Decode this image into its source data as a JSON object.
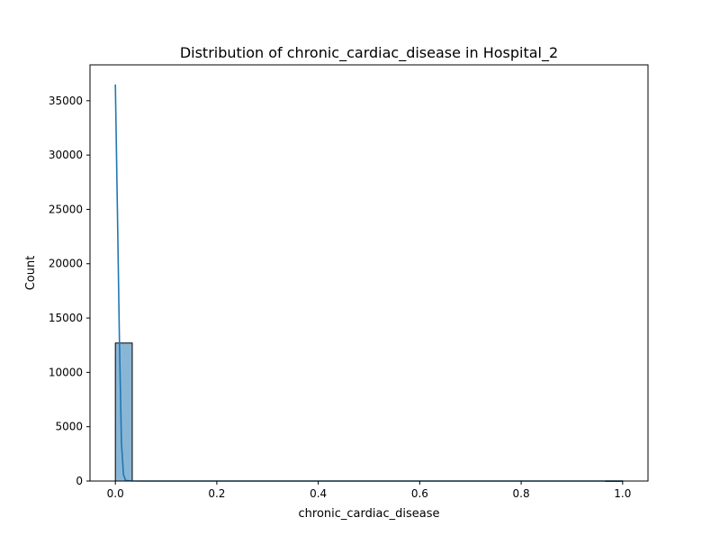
{
  "chart_data": {
    "type": "bar",
    "title": "Distribution of chronic_cardiac_disease in Hospital_2",
    "xlabel": "chronic_cardiac_disease",
    "ylabel": "Count",
    "xlim": [
      -0.05,
      1.05
    ],
    "ylim": [
      0,
      38300
    ],
    "xticks": [
      0.0,
      0.2,
      0.4,
      0.6,
      0.8,
      1.0
    ],
    "xtick_labels": [
      "0.0",
      "0.2",
      "0.4",
      "0.6",
      "0.8",
      "1.0"
    ],
    "yticks": [
      0,
      5000,
      10000,
      15000,
      20000,
      25000,
      30000,
      35000
    ],
    "ytick_labels": [
      "0",
      "5000",
      "10000",
      "15000",
      "20000",
      "25000",
      "30000",
      "35000"
    ],
    "grid": false,
    "bins": [
      {
        "x0": 0.0,
        "x1": 0.0333,
        "count": 12700
      },
      {
        "x0": 0.9667,
        "x1": 1.0,
        "count": 10
      }
    ],
    "kde": {
      "x": [
        0.0,
        0.004,
        0.008,
        0.012,
        0.016,
        0.02,
        0.03,
        0.05,
        0.1,
        0.2,
        0.4,
        0.6,
        0.8,
        1.0
      ],
      "y": [
        36500,
        25000,
        13000,
        3500,
        600,
        60,
        10,
        0,
        0,
        0,
        0,
        0,
        0,
        0
      ]
    },
    "colors": {
      "bar_fill": "#8ab6d6",
      "bar_edge": "#000000",
      "kde_line": "#1f77b4"
    }
  }
}
